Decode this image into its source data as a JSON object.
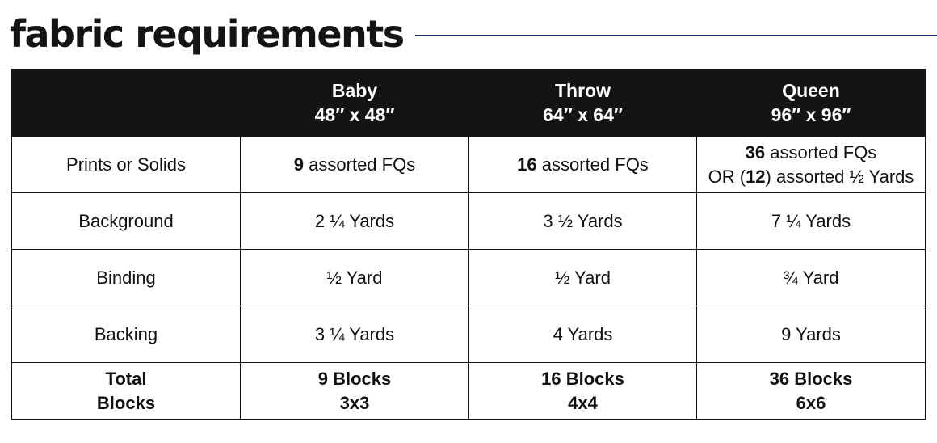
{
  "title": "fabric requirements",
  "colors": {
    "rule": "#1f2d6b",
    "header_bg": "#141414",
    "header_text": "#ffffff"
  },
  "header": {
    "corner": "",
    "columns": [
      {
        "name": "Baby",
        "size": "48″ x 48″"
      },
      {
        "name": "Throw",
        "size": "64″ x 64″"
      },
      {
        "name": "Queen",
        "size": "96″ x 96″"
      }
    ]
  },
  "rows": {
    "prints": {
      "label": "Prints or Solids",
      "baby": {
        "bold": "9",
        "text": " assorted FQs"
      },
      "throw": {
        "bold": "16",
        "text": " assorted FQs"
      },
      "queen": {
        "line1_bold": "36",
        "line1_text": " assorted FQs",
        "line2_pre": "OR (",
        "line2_bold": "12",
        "line2_post": ") assorted ½ Yards"
      }
    },
    "background": {
      "label": "Background",
      "values": [
        "2 ¼ Yards",
        "3 ½ Yards",
        "7 ¼ Yards"
      ]
    },
    "binding": {
      "label": "Binding",
      "values": [
        "½ Yard",
        "½ Yard",
        "¾ Yard"
      ]
    },
    "backing": {
      "label": "Backing",
      "values": [
        "3 ¼ Yards",
        "4 Yards",
        "9 Yards"
      ]
    },
    "total": {
      "label_line1": "Total",
      "label_line2": "Blocks",
      "values": [
        {
          "line1": "9 Blocks",
          "line2": "3x3"
        },
        {
          "line1": "16 Blocks",
          "line2": "4x4"
        },
        {
          "line1": "36 Blocks",
          "line2": "6x6"
        }
      ]
    }
  }
}
